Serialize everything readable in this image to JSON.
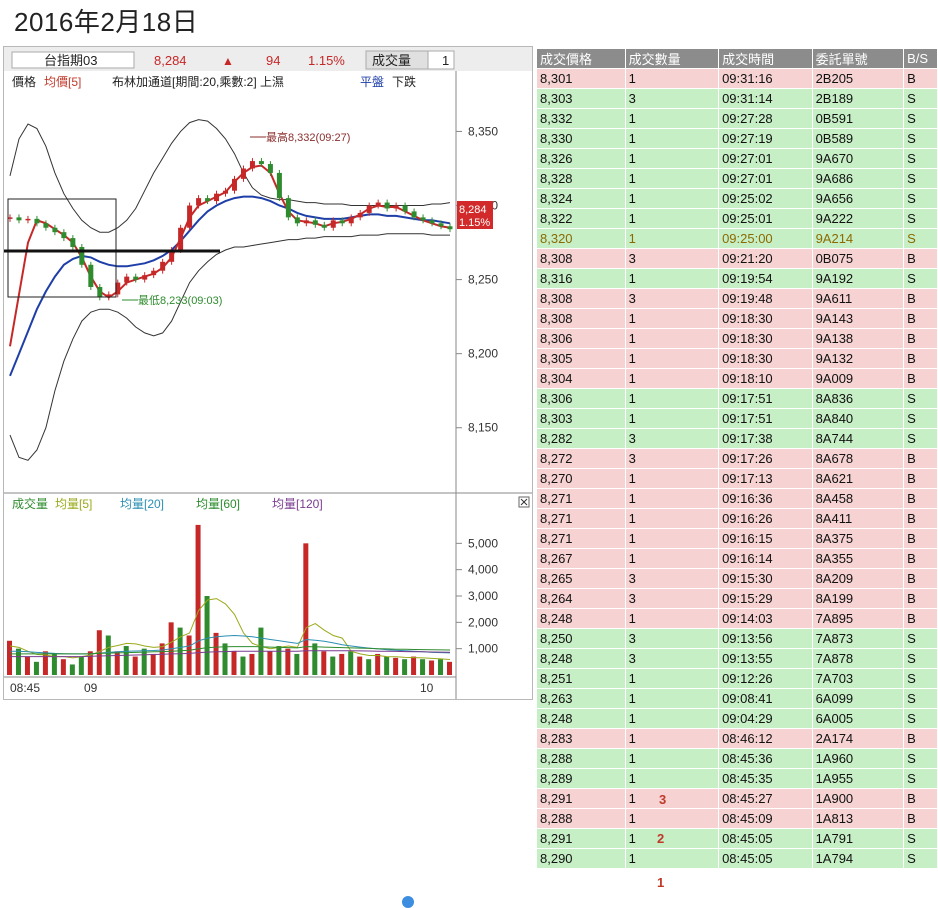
{
  "page_title": "2016年2月18日",
  "chart": {
    "header": {
      "symbol": "台指期03",
      "price": "8,284",
      "change_arrow": "▲",
      "change": "94",
      "change_pct": "1.15%",
      "volume_label": "成交量",
      "volume_value": "1"
    },
    "legend": [
      {
        "text": "價格",
        "color": "#222222"
      },
      {
        "text": "均價[5]",
        "color": "#c0392b"
      },
      {
        "text": "布林加通道[期間:20,乘數:2] 上濕",
        "color": "#222222"
      },
      {
        "text": "平盤",
        "color": "#1f3fa8"
      },
      {
        "text": "下跌",
        "color": "#222222"
      }
    ],
    "volume_legend": [
      {
        "text": "成交量",
        "color": "#2e8b2e"
      },
      {
        "text": "均量[5]",
        "color": "#9aaa1a"
      },
      {
        "text": "均量[20]",
        "color": "#2b8fb3"
      },
      {
        "text": "均量[60]",
        "color": "#2e8b2e"
      },
      {
        "text": "均量[120]",
        "color": "#7a3b8f"
      }
    ],
    "price_axis_labels": [
      "8,350",
      "8,300",
      "8,250",
      "8,200",
      "8,150"
    ],
    "volume_axis_labels": [
      "5,000",
      "4,000",
      "3,000",
      "2,000",
      "1,000"
    ],
    "time_axis_labels": [
      "08:45",
      "09",
      "10"
    ],
    "high_annotation": "最高8,332(09:27)",
    "low_annotation": "最低8,233(09:03)",
    "last_price_tag": "8,284",
    "last_pct_tag": "1.15%",
    "close_icon": "close-icon",
    "colors": {
      "up": "#c62828",
      "down": "#2e8b2e",
      "ma": "#1f3fa8",
      "band": "#333333",
      "tag": "#d22a2a"
    }
  },
  "chart_data": {
    "type": "line",
    "title": "",
    "xlabel": "",
    "ylabel": "",
    "ylim": [
      8110,
      8380
    ],
    "x_ticks": [
      "08:45",
      "09",
      "10"
    ],
    "series": [
      {
        "name": "價格",
        "values": [
          8292,
          8290,
          8291,
          8288,
          8285,
          8282,
          8278,
          8272,
          8260,
          8245,
          8238,
          8240,
          8248,
          8252,
          8250,
          8253,
          8256,
          8262,
          8270,
          8285,
          8300,
          8305,
          8303,
          8308,
          8310,
          8318,
          8325,
          8330,
          8328,
          8322,
          8305,
          8292,
          8288,
          8290,
          8287,
          8285,
          8290,
          8288,
          8292,
          8295,
          8300,
          8302,
          8298,
          8300,
          8296,
          8292,
          8290,
          8288,
          8286,
          8284
        ]
      },
      {
        "name": "均價[5]",
        "values": [
          8205,
          8240,
          8275,
          8290,
          8288,
          8284,
          8280,
          8275,
          8265,
          8252,
          8242,
          8238,
          8242,
          8248,
          8250,
          8252,
          8254,
          8258,
          8265,
          8278,
          8292,
          8300,
          8303,
          8306,
          8309,
          8316,
          8322,
          8326,
          8327,
          8322,
          8308,
          8296,
          8290,
          8289,
          8288,
          8286,
          8288,
          8289,
          8291,
          8294,
          8298,
          8300,
          8299,
          8299,
          8296,
          8293,
          8290,
          8288,
          8286,
          8285
        ]
      },
      {
        "name": "布林加通道 中軌",
        "values": [
          8185,
          8200,
          8215,
          8230,
          8242,
          8252,
          8260,
          8264,
          8266,
          8265,
          8262,
          8260,
          8259,
          8259,
          8260,
          8261,
          8263,
          8266,
          8270,
          8276,
          8283,
          8290,
          8296,
          8300,
          8303,
          8305,
          8306,
          8306,
          8305,
          8303,
          8300,
          8298,
          8295,
          8293,
          8292,
          8291,
          8291,
          8291,
          8292,
          8293,
          8294,
          8294,
          8293,
          8293,
          8292,
          8291,
          8290,
          8290,
          8289,
          8288
        ]
      },
      {
        "name": "布林加通道 上軌",
        "values": [
          8320,
          8345,
          8355,
          8352,
          8340,
          8322,
          8308,
          8298,
          8290,
          8285,
          8282,
          8282,
          8285,
          8290,
          8298,
          8310,
          8322,
          8332,
          8342,
          8350,
          8356,
          8358,
          8357,
          8352,
          8345,
          8335,
          8322,
          8312,
          8307,
          8305,
          8304,
          8304,
          8303,
          8302,
          8302,
          8301,
          8301,
          8301,
          8300,
          8300,
          8300,
          8300,
          8300,
          8300,
          8300,
          8300,
          8300,
          8301,
          8301,
          8302
        ]
      },
      {
        "name": "布林加通道 下軌",
        "values": [
          8145,
          8130,
          8128,
          8135,
          8150,
          8175,
          8195,
          8210,
          8222,
          8228,
          8230,
          8230,
          8228,
          8224,
          8218,
          8214,
          8212,
          8214,
          8222,
          8235,
          8248,
          8256,
          8262,
          8267,
          8270,
          8272,
          8272,
          8273,
          8274,
          8275,
          8276,
          8277,
          8277,
          8278,
          8278,
          8279,
          8279,
          8279,
          8279,
          8280,
          8280,
          8280,
          8281,
          8281,
          8281,
          8281,
          8281,
          8280,
          8280,
          8280
        ]
      }
    ],
    "volume": {
      "ylim": [
        0,
        6000
      ],
      "values": [
        1300,
        1000,
        700,
        500,
        900,
        800,
        600,
        400,
        700,
        900,
        1700,
        1500,
        900,
        1100,
        700,
        1000,
        800,
        1200,
        2000,
        1800,
        1500,
        5700,
        3000,
        1600,
        1200,
        900,
        700,
        800,
        1800,
        900,
        1100,
        1000,
        800,
        5000,
        1200,
        900,
        700,
        800,
        900,
        700,
        600,
        800,
        700,
        650,
        600,
        700,
        600,
        550,
        600,
        500
      ],
      "up": [
        true,
        false,
        true,
        false,
        true,
        false,
        true,
        false,
        false,
        true,
        true,
        false,
        true,
        false,
        true,
        false,
        true,
        true,
        true,
        false,
        true,
        true,
        false,
        true,
        false,
        true,
        false,
        true,
        false,
        true,
        false,
        true,
        false,
        true,
        false,
        true,
        false,
        true,
        false,
        true,
        false,
        true,
        false,
        true,
        false,
        true,
        false,
        true,
        false,
        true
      ],
      "ma5": [
        1100,
        1050,
        900,
        780,
        760,
        700,
        700,
        650,
        700,
        760,
        900,
        1050,
        1120,
        1200,
        1180,
        1100,
        1050,
        1080,
        1250,
        1450,
        1600,
        2450,
        2850,
        2900,
        2700,
        2300,
        1600,
        1200,
        1080,
        1000,
        1050,
        1100,
        1050,
        1800,
        1950,
        1700,
        1500,
        1400,
        900,
        800,
        740,
        740,
        700,
        690,
        670,
        660,
        650,
        630,
        610,
        590
      ],
      "ma20": [
        900,
        900,
        880,
        860,
        840,
        820,
        810,
        800,
        800,
        800,
        830,
        860,
        880,
        900,
        910,
        920,
        930,
        950,
        1000,
        1050,
        1100,
        1300,
        1400,
        1450,
        1480,
        1500,
        1480,
        1450,
        1400,
        1350,
        1300,
        1250,
        1200,
        1350,
        1320,
        1280,
        1220,
        1150,
        1100,
        1060,
        1020,
        990,
        960,
        940,
        920,
        900,
        880,
        860,
        850,
        840
      ],
      "ma60": [
        800,
        800,
        800,
        800,
        800,
        800,
        800,
        800,
        800,
        810,
        820,
        830,
        840,
        850,
        860,
        870,
        880,
        890,
        900,
        920,
        940,
        1000,
        1040,
        1060,
        1070,
        1080,
        1080,
        1080,
        1070,
        1060,
        1050,
        1040,
        1030,
        1080,
        1070,
        1060,
        1050,
        1040,
        1030,
        1020,
        1010,
        1000,
        990,
        980,
        975,
        970,
        965,
        960,
        955,
        950
      ],
      "ma120": [
        700,
        700,
        700,
        700,
        700,
        700,
        700,
        700,
        700,
        710,
        720,
        730,
        740,
        750,
        760,
        770,
        780,
        790,
        800,
        810,
        820,
        850,
        870,
        880,
        890,
        900,
        900,
        900,
        900,
        900,
        900,
        900,
        900,
        920,
        920,
        920,
        920,
        920,
        920,
        915,
        910,
        905,
        900,
        895,
        890,
        885,
        880,
        875,
        870,
        865
      ]
    }
  },
  "ticks": {
    "headers": [
      "成交價格",
      "成交數量",
      "成交時間",
      "委託單號",
      "B/S"
    ],
    "rows": [
      {
        "price": "8,301",
        "qty": "1",
        "time": "09:31:16",
        "order": "2B205",
        "side": "B"
      },
      {
        "price": "8,303",
        "qty": "3",
        "time": "09:31:14",
        "order": "2B189",
        "side": "S"
      },
      {
        "price": "8,332",
        "qty": "1",
        "time": "09:27:28",
        "order": "0B591",
        "side": "S"
      },
      {
        "price": "8,330",
        "qty": "1",
        "time": "09:27:19",
        "order": "0B589",
        "side": "S"
      },
      {
        "price": "8,326",
        "qty": "1",
        "time": "09:27:01",
        "order": "9A670",
        "side": "S"
      },
      {
        "price": "8,328",
        "qty": "1",
        "time": "09:27:01",
        "order": "9A686",
        "side": "S"
      },
      {
        "price": "8,324",
        "qty": "1",
        "time": "09:25:02",
        "order": "9A656",
        "side": "S"
      },
      {
        "price": "8,322",
        "qty": "1",
        "time": "09:25:01",
        "order": "9A222",
        "side": "S"
      },
      {
        "price": "8,320",
        "qty": "1",
        "time": "09:25:00",
        "order": "9A214",
        "side": "S",
        "highlight": true
      },
      {
        "price": "8,308",
        "qty": "3",
        "time": "09:21:20",
        "order": "0B075",
        "side": "B"
      },
      {
        "price": "8,316",
        "qty": "1",
        "time": "09:19:54",
        "order": "9A192",
        "side": "S"
      },
      {
        "price": "8,308",
        "qty": "3",
        "time": "09:19:48",
        "order": "9A611",
        "side": "B"
      },
      {
        "price": "8,308",
        "qty": "1",
        "time": "09:18:30",
        "order": "9A143",
        "side": "B"
      },
      {
        "price": "8,306",
        "qty": "1",
        "time": "09:18:30",
        "order": "9A138",
        "side": "B"
      },
      {
        "price": "8,305",
        "qty": "1",
        "time": "09:18:30",
        "order": "9A132",
        "side": "B"
      },
      {
        "price": "8,304",
        "qty": "1",
        "time": "09:18:10",
        "order": "9A009",
        "side": "B"
      },
      {
        "price": "8,306",
        "qty": "1",
        "time": "09:17:51",
        "order": "8A836",
        "side": "S"
      },
      {
        "price": "8,303",
        "qty": "1",
        "time": "09:17:51",
        "order": "8A840",
        "side": "S"
      },
      {
        "price": "8,282",
        "qty": "3",
        "time": "09:17:38",
        "order": "8A744",
        "side": "S"
      },
      {
        "price": "8,272",
        "qty": "3",
        "time": "09:17:26",
        "order": "8A678",
        "side": "B"
      },
      {
        "price": "8,270",
        "qty": "1",
        "time": "09:17:13",
        "order": "8A621",
        "side": "B"
      },
      {
        "price": "8,271",
        "qty": "1",
        "time": "09:16:36",
        "order": "8A458",
        "side": "B"
      },
      {
        "price": "8,271",
        "qty": "1",
        "time": "09:16:26",
        "order": "8A411",
        "side": "B"
      },
      {
        "price": "8,271",
        "qty": "1",
        "time": "09:16:15",
        "order": "8A375",
        "side": "B"
      },
      {
        "price": "8,267",
        "qty": "1",
        "time": "09:16:14",
        "order": "8A355",
        "side": "B"
      },
      {
        "price": "8,265",
        "qty": "3",
        "time": "09:15:30",
        "order": "8A209",
        "side": "B"
      },
      {
        "price": "8,264",
        "qty": "3",
        "time": "09:15:29",
        "order": "8A199",
        "side": "B"
      },
      {
        "price": "8,248",
        "qty": "1",
        "time": "09:14:03",
        "order": "7A895",
        "side": "B"
      },
      {
        "price": "8,250",
        "qty": "3",
        "time": "09:13:56",
        "order": "7A873",
        "side": "S"
      },
      {
        "price": "8,248",
        "qty": "3",
        "time": "09:13:55",
        "order": "7A878",
        "side": "S"
      },
      {
        "price": "8,251",
        "qty": "1",
        "time": "09:12:26",
        "order": "7A703",
        "side": "S"
      },
      {
        "price": "8,263",
        "qty": "1",
        "time": "09:08:41",
        "order": "6A099",
        "side": "S"
      },
      {
        "price": "8,248",
        "qty": "1",
        "time": "09:04:29",
        "order": "6A005",
        "side": "S"
      },
      {
        "price": "8,283",
        "qty": "1",
        "time": "08:46:12",
        "order": "2A174",
        "side": "B"
      },
      {
        "price": "8,288",
        "qty": "1",
        "time": "08:45:36",
        "order": "1A960",
        "side": "S"
      },
      {
        "price": "8,289",
        "qty": "1",
        "time": "08:45:35",
        "order": "1A955",
        "side": "S"
      },
      {
        "price": "8,291",
        "qty": "1",
        "time": "08:45:27",
        "order": "1A900",
        "side": "B"
      },
      {
        "price": "8,288",
        "qty": "1",
        "time": "08:45:09",
        "order": "1A813",
        "side": "B"
      },
      {
        "price": "8,291",
        "qty": "1",
        "time": "08:45:05",
        "order": "1A791",
        "side": "S"
      },
      {
        "price": "8,290",
        "qty": "1",
        "time": "08:45:05",
        "order": "1A794",
        "side": "S"
      }
    ]
  },
  "annotations": [
    "3",
    "2",
    "1"
  ]
}
